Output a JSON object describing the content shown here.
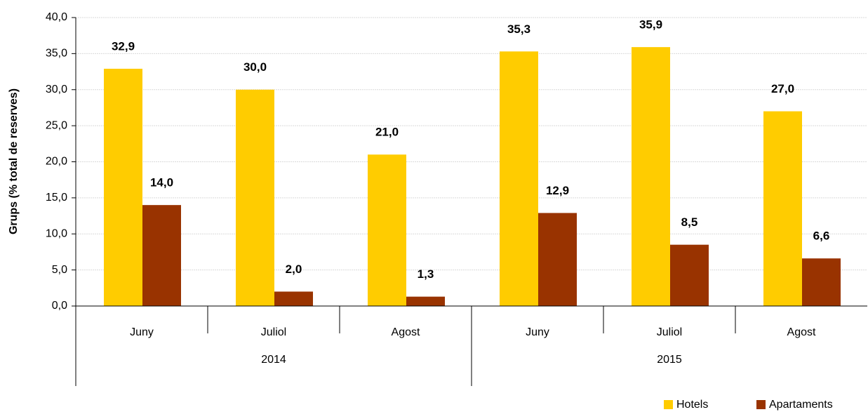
{
  "chart_data": {
    "type": "bar",
    "y_label": "Grups (% total de reserves)",
    "categories": [
      "Juny",
      "Juliol",
      "Agost",
      "Juny",
      "Juliol",
      "Agost"
    ],
    "category_groups": [
      "2014",
      "2015"
    ],
    "series": [
      {
        "name": "Hotels",
        "color": "#ffcc00",
        "values": [
          32.9,
          30.0,
          21.0,
          35.3,
          35.9,
          27.0
        ],
        "value_labels": [
          "32,9",
          "30,0",
          "21,0",
          "35,3",
          "35,9",
          "27,0"
        ]
      },
      {
        "name": "Apartaments",
        "color": "#993300",
        "values": [
          14.0,
          2.0,
          1.3,
          12.9,
          8.5,
          6.6
        ],
        "value_labels": [
          "14,0",
          "2,0",
          "1,3",
          "12,9",
          "8,5",
          "6,6"
        ]
      }
    ],
    "ylim": [
      0,
      40
    ],
    "yticks": [
      {
        "value": 0,
        "label": "0,0"
      },
      {
        "value": 5,
        "label": "5,0"
      },
      {
        "value": 10,
        "label": "10,0"
      },
      {
        "value": 15,
        "label": "15,0"
      },
      {
        "value": 20,
        "label": "20,0"
      },
      {
        "value": 25,
        "label": "25,0"
      },
      {
        "value": 30,
        "label": "30,0"
      },
      {
        "value": 35,
        "label": "35,0"
      },
      {
        "value": 40,
        "label": "40,0"
      }
    ],
    "grid": true,
    "legend": "bottom-right"
  }
}
